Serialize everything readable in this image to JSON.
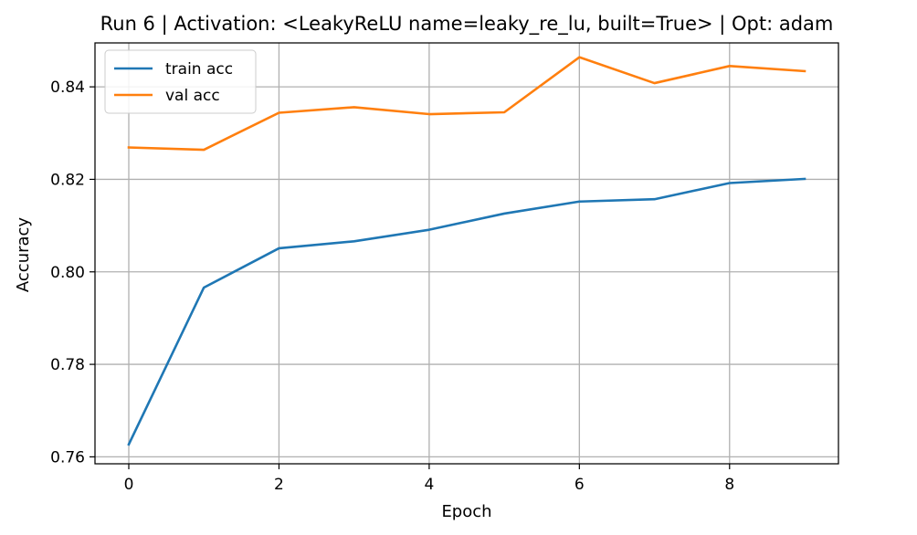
{
  "chart_data": {
    "type": "line",
    "title": "Run 6 | Activation: <LeakyReLU name=leaky_re_lu, built=True> | Opt: adam",
    "xlabel": "Epoch",
    "ylabel": "Accuracy",
    "xlim": [
      -0.45,
      9.45
    ],
    "ylim": [
      0.7585,
      0.8495
    ],
    "xticks": [
      0,
      2,
      4,
      6,
      8
    ],
    "xtick_labels": [
      "0",
      "2",
      "4",
      "6",
      "8"
    ],
    "yticks": [
      0.76,
      0.78,
      0.8,
      0.82,
      0.84
    ],
    "ytick_labels": [
      "0.76",
      "0.78",
      "0.80",
      "0.82",
      "0.84"
    ],
    "grid": true,
    "legend_position": "upper left",
    "x": [
      0,
      1,
      2,
      3,
      4,
      5,
      6,
      7,
      8,
      9
    ],
    "series": [
      {
        "name": "train acc",
        "color": "#1f77b4",
        "values": [
          0.7627,
          0.7966,
          0.8051,
          0.8066,
          0.8091,
          0.8126,
          0.8152,
          0.8157,
          0.8192,
          0.8201
        ]
      },
      {
        "name": "val acc",
        "color": "#ff7f0e",
        "values": [
          0.8269,
          0.8264,
          0.8344,
          0.8356,
          0.8341,
          0.8345,
          0.8464,
          0.8408,
          0.8445,
          0.8434
        ]
      }
    ]
  }
}
